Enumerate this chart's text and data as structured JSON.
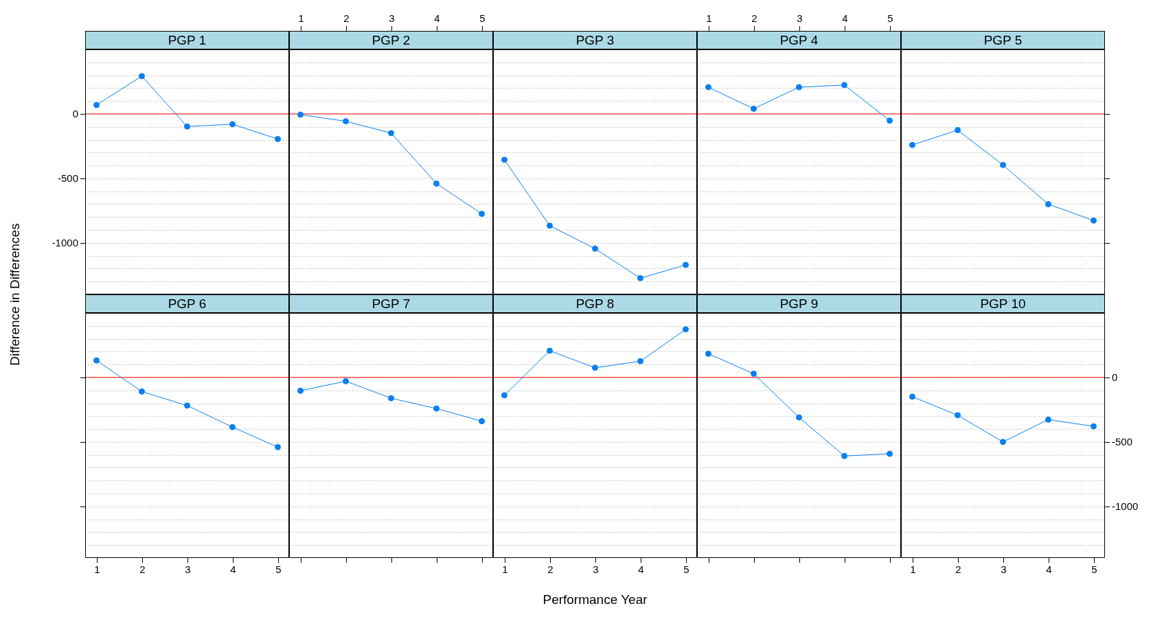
{
  "chart_data": [
    {
      "type": "line",
      "title": "PGP 1",
      "ylabel": "Difference in Differences",
      "x": [
        1,
        2,
        3,
        4,
        5
      ],
      "xlim": [
        0.75,
        5.25
      ],
      "ylim": [
        -1400,
        500
      ],
      "yticks": [
        {
          "value": -1300,
          "label": null
        },
        {
          "value": -1200,
          "label": null
        },
        {
          "value": -1100,
          "label": null
        },
        -1000,
        {
          "value": -900,
          "label": null
        },
        {
          "value": -800,
          "label": null
        },
        {
          "value": -700,
          "label": null
        },
        {
          "value": -600,
          "label": null
        },
        -500,
        {
          "value": -400,
          "label": null
        },
        {
          "value": -300,
          "label": null
        },
        {
          "value": -200,
          "label": null
        },
        {
          "value": -100,
          "label": null
        },
        0,
        {
          "value": 100,
          "label": null
        },
        {
          "value": 200,
          "label": null
        },
        {
          "value": 300,
          "label": null
        },
        {
          "value": 400,
          "label": null
        }
      ],
      "tick_labels": "y",
      "grid": "y",
      "marker": "circle",
      "ref_lines": [
        {
          "axis": "y",
          "value": 0,
          "color": "#ff0000"
        }
      ],
      "series": [
        {
          "color": "#0a7ff0",
          "values": [
            69,
            293,
            -98,
            -80,
            -195
          ]
        }
      ]
    },
    {
      "type": "line",
      "title": "PGP 2",
      "x": [
        1,
        2,
        3,
        4,
        5
      ],
      "xlim": [
        0.75,
        5.25
      ],
      "xticks": [
        1,
        2,
        3,
        4,
        5
      ],
      "ylim": [
        -1400,
        500
      ],
      "yticks": [
        {
          "value": -1300,
          "label": null
        },
        {
          "value": -1200,
          "label": null
        },
        {
          "value": -1100,
          "label": null
        },
        -1000,
        {
          "value": -900,
          "label": null
        },
        {
          "value": -800,
          "label": null
        },
        {
          "value": -700,
          "label": null
        },
        {
          "value": -600,
          "label": null
        },
        -500,
        {
          "value": -400,
          "label": null
        },
        {
          "value": -300,
          "label": null
        },
        {
          "value": -200,
          "label": null
        },
        {
          "value": -100,
          "label": null
        },
        0,
        {
          "value": 100,
          "label": null
        },
        {
          "value": 200,
          "label": null
        },
        {
          "value": 300,
          "label": null
        },
        {
          "value": 400,
          "label": null
        }
      ],
      "tick_labels": "x",
      "grid": "y",
      "marker": "circle",
      "ref_lines": [
        {
          "axis": "y",
          "value": 0,
          "color": "#ff0000"
        }
      ],
      "series": [
        {
          "color": "#0a7ff0",
          "values": [
            -6,
            -57,
            -149,
            -540,
            -775
          ]
        }
      ]
    },
    {
      "type": "line",
      "title": "PGP 3",
      "x": [
        1,
        2,
        3,
        4,
        5
      ],
      "xlim": [
        0.75,
        5.25
      ],
      "ylim": [
        -1400,
        500
      ],
      "yticks": [
        {
          "value": -1300,
          "label": null
        },
        {
          "value": -1200,
          "label": null
        },
        {
          "value": -1100,
          "label": null
        },
        -1000,
        {
          "value": -900,
          "label": null
        },
        {
          "value": -800,
          "label": null
        },
        {
          "value": -700,
          "label": null
        },
        {
          "value": -600,
          "label": null
        },
        -500,
        {
          "value": -400,
          "label": null
        },
        {
          "value": -300,
          "label": null
        },
        {
          "value": -200,
          "label": null
        },
        {
          "value": -100,
          "label": null
        },
        0,
        {
          "value": 100,
          "label": null
        },
        {
          "value": 200,
          "label": null
        },
        {
          "value": 300,
          "label": null
        },
        {
          "value": 400,
          "label": null
        }
      ],
      "tick_labels": false,
      "grid": "y",
      "marker": "circle",
      "ref_lines": [
        {
          "axis": "y",
          "value": 0,
          "color": "#ff0000"
        }
      ],
      "series": [
        {
          "color": "#0a7ff0",
          "values": [
            -356,
            -867,
            -1045,
            -1274,
            -1171
          ]
        }
      ]
    },
    {
      "type": "line",
      "title": "PGP 4",
      "x": [
        1,
        2,
        3,
        4,
        5
      ],
      "xlim": [
        0.75,
        5.25
      ],
      "xticks": [
        1,
        2,
        3,
        4,
        5
      ],
      "ylim": [
        -1400,
        500
      ],
      "yticks": [
        {
          "value": -1300,
          "label": null
        },
        {
          "value": -1200,
          "label": null
        },
        {
          "value": -1100,
          "label": null
        },
        -1000,
        {
          "value": -900,
          "label": null
        },
        {
          "value": -800,
          "label": null
        },
        {
          "value": -700,
          "label": null
        },
        {
          "value": -600,
          "label": null
        },
        -500,
        {
          "value": -400,
          "label": null
        },
        {
          "value": -300,
          "label": null
        },
        {
          "value": -200,
          "label": null
        },
        {
          "value": -100,
          "label": null
        },
        0,
        {
          "value": 100,
          "label": null
        },
        {
          "value": 200,
          "label": null
        },
        {
          "value": 300,
          "label": null
        },
        {
          "value": 400,
          "label": null
        }
      ],
      "tick_labels": "x",
      "grid": "y",
      "marker": "circle",
      "ref_lines": [
        {
          "axis": "y",
          "value": 0,
          "color": "#ff0000"
        }
      ],
      "series": [
        {
          "color": "#0a7ff0",
          "values": [
            207,
            40,
            207,
            224,
            -52
          ]
        }
      ]
    },
    {
      "type": "line",
      "title": "PGP 5",
      "x": [
        1,
        2,
        3,
        4,
        5
      ],
      "xlim": [
        0.75,
        5.25
      ],
      "ylim": [
        -1400,
        500
      ],
      "yticks": [
        {
          "value": -1300,
          "label": null
        },
        {
          "value": -1200,
          "label": null
        },
        {
          "value": -1100,
          "label": null
        },
        -1000,
        {
          "value": -900,
          "label": null
        },
        {
          "value": -800,
          "label": null
        },
        {
          "value": -700,
          "label": null
        },
        {
          "value": -600,
          "label": null
        },
        -500,
        {
          "value": -400,
          "label": null
        },
        {
          "value": -300,
          "label": null
        },
        {
          "value": -200,
          "label": null
        },
        {
          "value": -100,
          "label": null
        },
        0,
        {
          "value": 100,
          "label": null
        },
        {
          "value": 200,
          "label": null
        },
        {
          "value": 300,
          "label": null
        },
        {
          "value": 400,
          "label": null
        }
      ],
      "tick_labels": false,
      "grid": "y",
      "marker": "circle",
      "ref_lines": [
        {
          "axis": "y",
          "value": 0,
          "color": "#ff0000"
        }
      ],
      "series": [
        {
          "color": "#0a7ff0",
          "values": [
            -241,
            -126,
            -396,
            -700,
            -827
          ]
        }
      ]
    },
    {
      "type": "line",
      "title": "PGP 6",
      "x": [
        1,
        2,
        3,
        4,
        5
      ],
      "xlim": [
        0.75,
        5.25
      ],
      "xticks": [
        1,
        2,
        3,
        4,
        5
      ],
      "ylim": [
        -1400,
        500
      ],
      "yticks": [
        {
          "value": -1300,
          "label": null
        },
        {
          "value": -1200,
          "label": null
        },
        {
          "value": -1100,
          "label": null
        },
        -1000,
        {
          "value": -900,
          "label": null
        },
        {
          "value": -800,
          "label": null
        },
        {
          "value": -700,
          "label": null
        },
        {
          "value": -600,
          "label": null
        },
        -500,
        {
          "value": -400,
          "label": null
        },
        {
          "value": -300,
          "label": null
        },
        {
          "value": -200,
          "label": null
        },
        {
          "value": -100,
          "label": null
        },
        0,
        {
          "value": 100,
          "label": null
        },
        {
          "value": 200,
          "label": null
        },
        {
          "value": 300,
          "label": null
        },
        {
          "value": 400,
          "label": null
        }
      ],
      "tick_labels": "x",
      "grid": "y",
      "marker": "circle",
      "ref_lines": [
        {
          "axis": "y",
          "value": 0,
          "color": "#ff0000"
        }
      ],
      "series": [
        {
          "color": "#0a7ff0",
          "values": [
            132,
            -109,
            -218,
            -385,
            -540
          ]
        }
      ]
    },
    {
      "type": "line",
      "title": "PGP 7",
      "x": [
        1,
        2,
        3,
        4,
        5
      ],
      "xlim": [
        0.75,
        5.25
      ],
      "xticks": [
        1,
        2,
        3,
        4,
        5
      ],
      "ylim": [
        -1400,
        500
      ],
      "yticks": [
        {
          "value": -1300,
          "label": null
        },
        {
          "value": -1200,
          "label": null
        },
        {
          "value": -1100,
          "label": null
        },
        -1000,
        {
          "value": -900,
          "label": null
        },
        {
          "value": -800,
          "label": null
        },
        {
          "value": -700,
          "label": null
        },
        {
          "value": -600,
          "label": null
        },
        -500,
        {
          "value": -400,
          "label": null
        },
        {
          "value": -300,
          "label": null
        },
        {
          "value": -200,
          "label": null
        },
        {
          "value": -100,
          "label": null
        },
        0,
        {
          "value": 100,
          "label": null
        },
        {
          "value": 200,
          "label": null
        },
        {
          "value": 300,
          "label": null
        },
        {
          "value": 400,
          "label": null
        }
      ],
      "tick_labels": false,
      "grid": "y",
      "marker": "circle",
      "ref_lines": [
        {
          "axis": "y",
          "value": 0,
          "color": "#ff0000"
        }
      ],
      "series": [
        {
          "color": "#0a7ff0",
          "values": [
            -103,
            -29,
            -161,
            -241,
            -339
          ]
        }
      ]
    },
    {
      "type": "line",
      "title": "PGP 8",
      "xlabel": "Performance Year",
      "x": [
        1,
        2,
        3,
        4,
        5
      ],
      "xlim": [
        0.75,
        5.25
      ],
      "xticks": [
        1,
        2,
        3,
        4,
        5
      ],
      "ylim": [
        -1400,
        500
      ],
      "yticks": [
        {
          "value": -1300,
          "label": null
        },
        {
          "value": -1200,
          "label": null
        },
        {
          "value": -1100,
          "label": null
        },
        -1000,
        {
          "value": -900,
          "label": null
        },
        {
          "value": -800,
          "label": null
        },
        {
          "value": -700,
          "label": null
        },
        {
          "value": -600,
          "label": null
        },
        -500,
        {
          "value": -400,
          "label": null
        },
        {
          "value": -300,
          "label": null
        },
        {
          "value": -200,
          "label": null
        },
        {
          "value": -100,
          "label": null
        },
        0,
        {
          "value": 100,
          "label": null
        },
        {
          "value": 200,
          "label": null
        },
        {
          "value": 300,
          "label": null
        },
        {
          "value": 400,
          "label": null
        }
      ],
      "tick_labels": "x",
      "grid": "y",
      "marker": "circle",
      "ref_lines": [
        {
          "axis": "y",
          "value": 0,
          "color": "#ff0000"
        }
      ],
      "series": [
        {
          "color": "#0a7ff0",
          "values": [
            -138,
            207,
            75,
            126,
            373
          ]
        }
      ]
    },
    {
      "type": "line",
      "title": "PGP 9",
      "x": [
        1,
        2,
        3,
        4,
        5
      ],
      "xlim": [
        0.75,
        5.25
      ],
      "xticks": [
        1,
        2,
        3,
        4,
        5
      ],
      "ylim": [
        -1400,
        500
      ],
      "yticks": [
        {
          "value": -1300,
          "label": null
        },
        {
          "value": -1200,
          "label": null
        },
        {
          "value": -1100,
          "label": null
        },
        -1000,
        {
          "value": -900,
          "label": null
        },
        {
          "value": -800,
          "label": null
        },
        {
          "value": -700,
          "label": null
        },
        {
          "value": -600,
          "label": null
        },
        -500,
        {
          "value": -400,
          "label": null
        },
        {
          "value": -300,
          "label": null
        },
        {
          "value": -200,
          "label": null
        },
        {
          "value": -100,
          "label": null
        },
        0,
        {
          "value": 100,
          "label": null
        },
        {
          "value": 200,
          "label": null
        },
        {
          "value": 300,
          "label": null
        },
        {
          "value": 400,
          "label": null
        }
      ],
      "tick_labels": false,
      "grid": "y",
      "marker": "circle",
      "ref_lines": [
        {
          "axis": "y",
          "value": 0,
          "color": "#ff0000"
        }
      ],
      "series": [
        {
          "color": "#0a7ff0",
          "values": [
            184,
            29,
            -310,
            -609,
            -592
          ]
        }
      ]
    },
    {
      "type": "line",
      "title": "PGP 10",
      "x": [
        1,
        2,
        3,
        4,
        5
      ],
      "xlim": [
        0.75,
        5.25
      ],
      "xticks": [
        1,
        2,
        3,
        4,
        5
      ],
      "y2lim": [
        -1400,
        500
      ],
      "y2ticks": [
        {
          "value": -1300,
          "label": null
        },
        {
          "value": -1200,
          "label": null
        },
        {
          "value": -1100,
          "label": null
        },
        -1000,
        {
          "value": -900,
          "label": null
        },
        {
          "value": -800,
          "label": null
        },
        {
          "value": -700,
          "label": null
        },
        {
          "value": -600,
          "label": null
        },
        -500,
        {
          "value": -400,
          "label": null
        },
        {
          "value": -300,
          "label": null
        },
        {
          "value": -200,
          "label": null
        },
        {
          "value": -100,
          "label": null
        },
        0,
        {
          "value": 100,
          "label": null
        },
        {
          "value": 200,
          "label": null
        },
        {
          "value": 300,
          "label": null
        },
        {
          "value": 400,
          "label": null
        }
      ],
      "grid": "y",
      "marker": "circle",
      "ref_lines": [
        {
          "axis": "y2",
          "value": 0,
          "color": "#ff0000"
        }
      ],
      "series": [
        {
          "color": "#0a7ff0",
          "axis": "y2",
          "values": [
            -149,
            -293,
            -500,
            -327,
            -379
          ]
        }
      ]
    }
  ]
}
